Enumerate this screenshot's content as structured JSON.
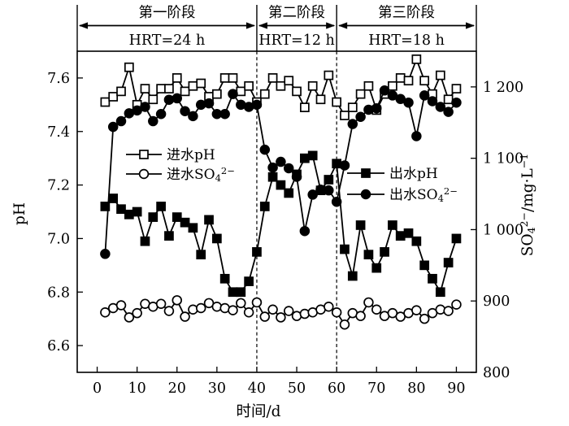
{
  "chart_data": {
    "type": "line",
    "title": "",
    "background": "#ffffff",
    "foreground": "#000000",
    "grid": false,
    "x": [
      2,
      4,
      6,
      8,
      10,
      12,
      14,
      16,
      18,
      20,
      22,
      24,
      26,
      28,
      30,
      32,
      34,
      36,
      38,
      40,
      42,
      44,
      46,
      48,
      50,
      52,
      54,
      56,
      58,
      60,
      62,
      64,
      66,
      68,
      70,
      72,
      74,
      76,
      78,
      80,
      82,
      84,
      86,
      88,
      90
    ],
    "x_axis": {
      "label": "时间/d",
      "ticks": [
        0,
        10,
        20,
        30,
        40,
        50,
        60,
        70,
        80,
        90
      ],
      "range": [
        -5,
        95
      ]
    },
    "left_axis": {
      "label": "pH",
      "tick_labels": [
        "6.6",
        "6.8",
        "7.0",
        "7.2",
        "7.4",
        "7.6"
      ],
      "tick_values": [
        6.6,
        6.8,
        7.0,
        7.2,
        7.4,
        7.6
      ],
      "range": [
        6.5,
        7.7
      ]
    },
    "right_axis": {
      "label": "SO₄²⁻/mg·L⁻¹",
      "tick_labels": [
        "800",
        "900",
        "1 000",
        "1 100",
        "1 200"
      ],
      "tick_values": [
        800,
        900,
        1000,
        1100,
        1200
      ],
      "range": [
        800,
        1250
      ]
    },
    "series": [
      {
        "id": "influent-ph",
        "name": "进水pH",
        "axis": "left",
        "marker": "square-open",
        "values": [
          7.51,
          7.53,
          7.55,
          7.64,
          7.5,
          7.56,
          7.52,
          7.56,
          7.56,
          7.6,
          7.55,
          7.57,
          7.58,
          7.53,
          7.54,
          7.6,
          7.6,
          7.55,
          7.57,
          7.51,
          7.54,
          7.6,
          7.57,
          7.59,
          7.55,
          7.49,
          7.57,
          7.52,
          7.61,
          7.51,
          7.46,
          7.49,
          7.54,
          7.57,
          7.48,
          7.54,
          7.57,
          7.6,
          7.59,
          7.67,
          7.59,
          7.54,
          7.61,
          7.52,
          7.56
        ]
      },
      {
        "id": "influent-so4",
        "name": "进水SO₄²⁻",
        "axis": "right",
        "marker": "circle-open",
        "values": [
          884,
          890,
          894,
          877,
          883,
          896,
          892,
          896,
          886,
          901,
          878,
          888,
          890,
          897,
          892,
          890,
          887,
          897,
          884,
          898,
          878,
          888,
          877,
          886,
          879,
          882,
          884,
          888,
          892,
          884,
          867,
          883,
          879,
          898,
          888,
          879,
          883,
          878,
          883,
          887,
          875,
          883,
          888,
          886,
          895
        ]
      },
      {
        "id": "effluent-ph",
        "name": "出水pH",
        "axis": "left",
        "marker": "square-filled",
        "values": [
          7.12,
          7.15,
          7.11,
          7.09,
          7.1,
          6.99,
          7.08,
          7.12,
          7.01,
          7.08,
          7.06,
          7.04,
          6.94,
          7.07,
          7.0,
          6.85,
          6.8,
          6.8,
          6.84,
          6.95,
          7.12,
          7.23,
          7.2,
          7.17,
          7.24,
          7.3,
          7.31,
          7.18,
          7.22,
          7.28,
          6.96,
          6.86,
          7.05,
          6.94,
          6.89,
          6.95,
          7.05,
          7.01,
          7.02,
          6.99,
          6.9,
          6.85,
          6.8,
          6.91,
          7.0
        ]
      },
      {
        "id": "effluent-so4",
        "name": "出水SO₄²⁻",
        "axis": "right",
        "marker": "circle-filled",
        "values": [
          966,
          1144,
          1152,
          1163,
          1167,
          1172,
          1152,
          1162,
          1182,
          1184,
          1166,
          1159,
          1175,
          1177,
          1162,
          1162,
          1190,
          1175,
          1172,
          1175,
          1112,
          1087,
          1095,
          1086,
          1074,
          998,
          1049,
          1056,
          1055,
          1039,
          1090,
          1148,
          1158,
          1168,
          1170,
          1195,
          1188,
          1183,
          1178,
          1131,
          1188,
          1180,
          1172,
          1165,
          1178
        ]
      }
    ],
    "legends": [
      {
        "position": "inside-left",
        "entries": [
          {
            "series": 0,
            "label": "进水pH"
          },
          {
            "series": 1,
            "label": "进水SO₄²⁻"
          }
        ]
      },
      {
        "position": "inside-right",
        "entries": [
          {
            "series": 2,
            "label": "出水pH"
          },
          {
            "series": 3,
            "label": "出水SO₄²⁻"
          }
        ]
      }
    ],
    "annotations": {
      "dashed_lines_days": [
        40,
        60
      ],
      "phase_boundaries_days": [
        40,
        60
      ],
      "phases": [
        {
          "label": "第一阶段",
          "hrt": "HRT=24 h",
          "from_day": -5,
          "to_day": 40
        },
        {
          "label": "第二阶段",
          "hrt": "HRT=12 h",
          "from_day": 40,
          "to_day": 60
        },
        {
          "label": "第三阶段",
          "hrt": "HRT=18 h",
          "from_day": 60,
          "to_day": 95
        }
      ]
    }
  }
}
